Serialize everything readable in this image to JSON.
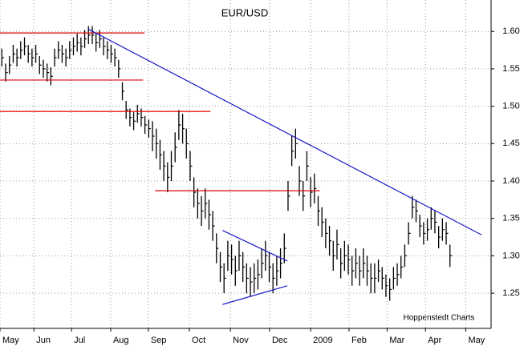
{
  "chart_data": {
    "type": "ohlc",
    "title": "EUR/USD",
    "annotation": "Hoppenstedt Charts",
    "color": "#000000",
    "grid": true,
    "high": [
      1.577,
      1.557,
      1.567,
      1.582,
      1.577,
      1.587,
      1.592,
      1.582,
      1.577,
      1.582,
      1.567,
      1.562,
      1.557,
      1.552,
      1.577,
      1.587,
      1.582,
      1.577,
      1.587,
      1.592,
      1.597,
      1.592,
      1.602,
      1.607,
      1.607,
      1.597,
      1.602,
      1.592,
      1.587,
      1.582,
      1.577,
      1.562,
      1.532,
      1.507,
      1.497,
      1.492,
      1.502,
      1.497,
      1.487,
      1.482,
      1.48,
      1.47,
      1.455,
      1.44,
      1.425,
      1.44,
      1.465,
      1.495,
      1.49,
      1.47,
      1.44,
      1.405,
      1.39,
      1.38,
      1.39,
      1.375,
      1.36,
      1.33,
      1.305,
      1.29,
      1.32,
      1.315,
      1.3,
      1.32,
      1.305,
      1.29,
      1.285,
      1.29,
      1.295,
      1.31,
      1.32,
      1.305,
      1.29,
      1.3,
      1.31,
      1.33,
      1.4,
      1.46,
      1.47,
      1.42,
      1.4,
      1.44,
      1.405,
      1.41,
      1.38,
      1.365,
      1.35,
      1.34,
      1.32,
      1.335,
      1.31,
      1.32,
      1.315,
      1.3,
      1.31,
      1.3,
      1.31,
      1.3,
      1.29,
      1.29,
      1.295,
      1.285,
      1.275,
      1.27,
      1.285,
      1.29,
      1.3,
      1.315,
      1.345,
      1.38,
      1.375,
      1.355,
      1.345,
      1.35,
      1.365,
      1.36,
      1.34,
      1.35,
      1.345,
      1.315
    ],
    "low": [
      1.553,
      1.533,
      1.543,
      1.558,
      1.553,
      1.563,
      1.568,
      1.558,
      1.553,
      1.558,
      1.543,
      1.538,
      1.533,
      1.528,
      1.553,
      1.563,
      1.558,
      1.553,
      1.563,
      1.568,
      1.573,
      1.568,
      1.578,
      1.583,
      1.583,
      1.573,
      1.578,
      1.568,
      1.563,
      1.558,
      1.553,
      1.538,
      1.508,
      1.483,
      1.473,
      1.468,
      1.478,
      1.473,
      1.463,
      1.458,
      1.44,
      1.43,
      1.415,
      1.4,
      1.385,
      1.4,
      1.425,
      1.455,
      1.45,
      1.43,
      1.4,
      1.365,
      1.35,
      1.34,
      1.35,
      1.335,
      1.32,
      1.29,
      1.265,
      1.25,
      1.28,
      1.275,
      1.26,
      1.28,
      1.265,
      1.25,
      1.245,
      1.25,
      1.255,
      1.27,
      1.28,
      1.265,
      1.25,
      1.26,
      1.27,
      1.29,
      1.36,
      1.42,
      1.43,
      1.38,
      1.36,
      1.4,
      1.365,
      1.37,
      1.34,
      1.325,
      1.31,
      1.3,
      1.28,
      1.295,
      1.27,
      1.28,
      1.275,
      1.26,
      1.27,
      1.26,
      1.27,
      1.26,
      1.25,
      1.25,
      1.265,
      1.255,
      1.245,
      1.24,
      1.255,
      1.26,
      1.27,
      1.285,
      1.315,
      1.35,
      1.345,
      1.325,
      1.315,
      1.32,
      1.335,
      1.33,
      1.31,
      1.32,
      1.315,
      1.285
    ],
    "close": [
      1.565,
      1.545,
      1.555,
      1.57,
      1.565,
      1.575,
      1.58,
      1.57,
      1.565,
      1.57,
      1.555,
      1.55,
      1.545,
      1.54,
      1.565,
      1.575,
      1.57,
      1.565,
      1.575,
      1.58,
      1.585,
      1.58,
      1.59,
      1.595,
      1.595,
      1.585,
      1.59,
      1.58,
      1.575,
      1.57,
      1.565,
      1.55,
      1.52,
      1.495,
      1.485,
      1.48,
      1.49,
      1.485,
      1.475,
      1.47,
      1.46,
      1.45,
      1.435,
      1.42,
      1.405,
      1.42,
      1.445,
      1.475,
      1.47,
      1.45,
      1.42,
      1.385,
      1.37,
      1.36,
      1.37,
      1.355,
      1.34,
      1.31,
      1.285,
      1.27,
      1.3,
      1.295,
      1.28,
      1.3,
      1.285,
      1.27,
      1.265,
      1.27,
      1.275,
      1.29,
      1.3,
      1.285,
      1.27,
      1.28,
      1.29,
      1.31,
      1.38,
      1.44,
      1.45,
      1.4,
      1.38,
      1.42,
      1.385,
      1.39,
      1.36,
      1.345,
      1.33,
      1.32,
      1.3,
      1.315,
      1.29,
      1.3,
      1.295,
      1.28,
      1.29,
      1.28,
      1.29,
      1.28,
      1.27,
      1.27,
      1.28,
      1.27,
      1.26,
      1.255,
      1.27,
      1.275,
      1.285,
      1.3,
      1.33,
      1.365,
      1.36,
      1.34,
      1.33,
      1.335,
      1.35,
      1.345,
      1.325,
      1.335,
      1.33,
      1.3
    ],
    "xlim": [
      0,
      130
    ],
    "xticks": [
      {
        "value": 0,
        "label": "May"
      },
      {
        "value": 9,
        "label": "Jun"
      },
      {
        "value": 19,
        "label": "Jul"
      },
      {
        "value": 29.4,
        "label": "Aug"
      },
      {
        "value": 39.4,
        "label": "Sep"
      },
      {
        "value": 50.3,
        "label": "Oct"
      },
      {
        "value": 61.2,
        "label": "Nov"
      },
      {
        "value": 71.6,
        "label": "Dec"
      },
      {
        "value": 82.5,
        "label": "2009"
      },
      {
        "value": 92.7,
        "label": "Feb"
      },
      {
        "value": 102.8,
        "label": "Mar"
      },
      {
        "value": 113,
        "label": "Apr"
      },
      {
        "value": 123.7,
        "label": "May"
      }
    ],
    "ylim": [
      1.203,
      1.642
    ],
    "yticks": [
      1.25,
      {
        "value": 1.3,
        "label": "1.30"
      },
      1.35,
      {
        "value": 1.4,
        "label": "1.40"
      },
      1.45,
      {
        "value": 1.5,
        "label": "1.50"
      },
      1.55,
      {
        "value": 1.6,
        "label": "1.60"
      }
    ],
    "lines": [
      {
        "color": "#e00000",
        "x": [
          0,
          38.4
        ],
        "y": [
          1.598,
          1.598
        ]
      },
      {
        "color": "#e00000",
        "x": [
          0,
          38
        ],
        "y": [
          1.535,
          1.535
        ]
      },
      {
        "color": "#e00000",
        "x": [
          0,
          55.9
        ],
        "y": [
          1.493,
          1.493
        ]
      },
      {
        "color": "#e00000",
        "x": [
          41.2,
          84.9
        ],
        "y": [
          1.387,
          1.387
        ]
      },
      {
        "color": "#1a1ac8",
        "x": [
          23.5,
          127.9
        ],
        "y": [
          1.603,
          1.328
        ]
      },
      {
        "color": "#1a1ac8",
        "x": [
          59.1,
          76.3
        ],
        "y": [
          1.334,
          1.293
        ]
      },
      {
        "color": "#1a1ac8",
        "x": [
          59.1,
          76.3
        ],
        "y": [
          1.235,
          1.26
        ]
      }
    ]
  }
}
